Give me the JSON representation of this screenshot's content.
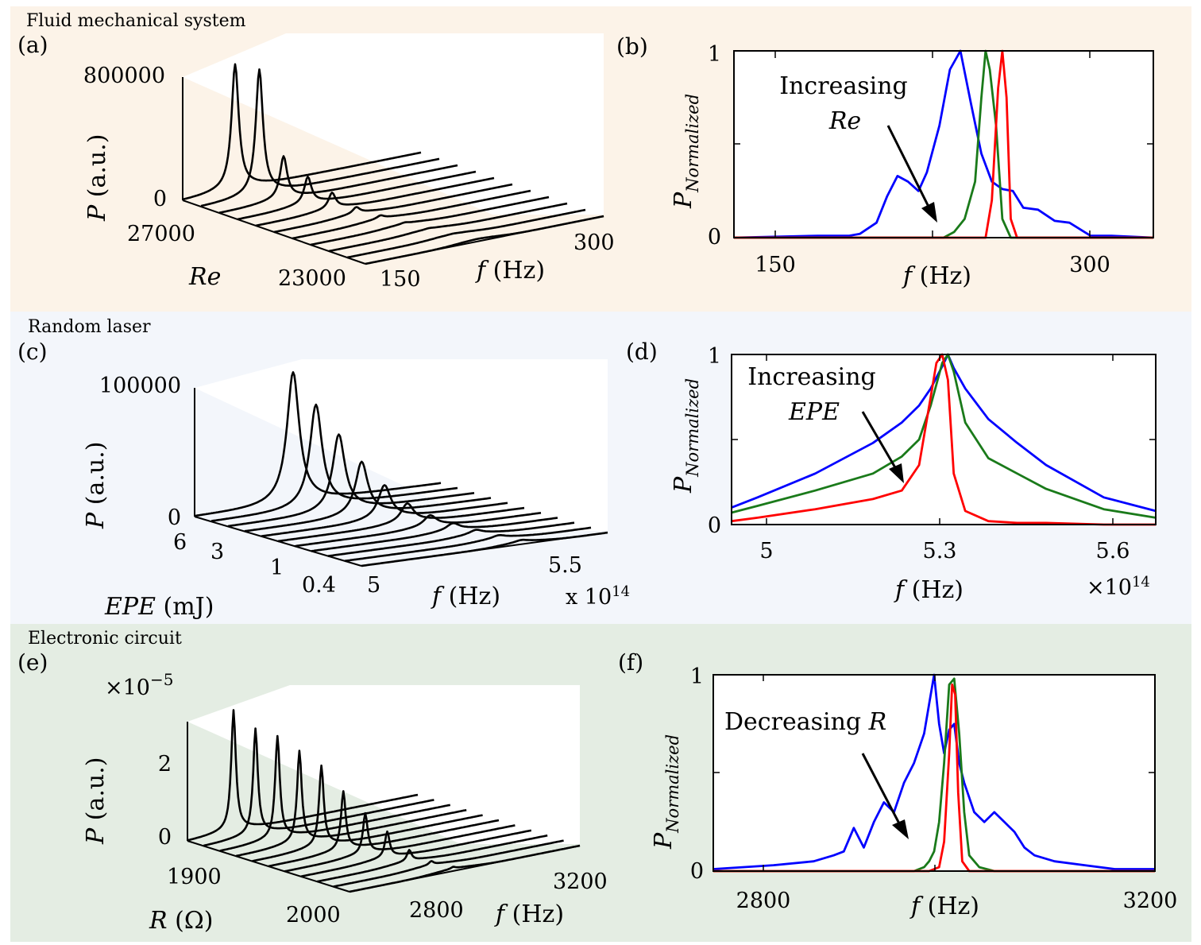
{
  "colors": {
    "fluid_bg": "#fcf3e8",
    "laser_bg": "#f3f6fb",
    "circuit_bg": "#e4ede3",
    "blue": "#0000ff",
    "green": "#1a7a1a",
    "red": "#ff0000",
    "black": "#000000"
  },
  "sections": {
    "fluid": "Fluid mechanical system",
    "laser": "Random laser",
    "circuit": "Electronic circuit"
  },
  "chart_data": [
    {
      "id": "a",
      "panel_label": "(a)",
      "type": "waterfall",
      "zlabel_var": "P",
      "zlabel_unit": "(a.u.)",
      "ylabel": "Re",
      "xlabel_var": "f",
      "xlabel_unit": "(Hz)",
      "z_ticks": [
        "0",
        "800000"
      ],
      "y_ticks": [
        "27000",
        "23000"
      ],
      "x_ticks": [
        "150",
        "300"
      ],
      "peak_heights": [
        800000,
        800000,
        270000,
        170000,
        100000,
        40000,
        20000,
        8000,
        4000,
        2000,
        1000
      ],
      "series_count": 11
    },
    {
      "id": "b",
      "panel_label": "(b)",
      "type": "line",
      "ylabel": "P",
      "ylabel_sub": "Normalized",
      "xlabel_var": "f",
      "xlabel_unit": "(Hz)",
      "x_ticks": [
        "150",
        "300"
      ],
      "y_ticks": [
        "0",
        "1"
      ],
      "xlim": [
        130,
        330
      ],
      "ylim": [
        0,
        1
      ],
      "annotation": [
        "Increasing",
        "Re"
      ],
      "series": [
        {
          "color": "blue",
          "x": [
            130,
            170,
            185,
            190,
            198,
            203,
            208,
            213,
            218,
            222,
            228,
            233,
            238,
            243,
            248,
            253,
            258,
            263,
            268,
            275,
            283,
            290,
            300,
            310,
            330
          ],
          "y": [
            0,
            0.01,
            0.01,
            0.02,
            0.08,
            0.22,
            0.33,
            0.3,
            0.25,
            0.35,
            0.6,
            0.9,
            1.0,
            0.72,
            0.45,
            0.3,
            0.26,
            0.25,
            0.16,
            0.15,
            0.09,
            0.08,
            0.01,
            0.01,
            0
          ]
        },
        {
          "color": "green",
          "x": [
            130,
            230,
            235,
            240,
            245,
            248,
            250,
            252,
            255,
            258,
            262,
            330
          ],
          "y": [
            0,
            0,
            0.03,
            0.1,
            0.3,
            0.75,
            1.0,
            0.9,
            0.6,
            0.1,
            0,
            0
          ]
        },
        {
          "color": "red",
          "x": [
            130,
            250,
            253,
            256,
            258,
            260,
            262,
            265,
            330
          ],
          "y": [
            0,
            0,
            0.2,
            0.8,
            1.0,
            0.75,
            0.1,
            0,
            0
          ]
        }
      ]
    },
    {
      "id": "c",
      "panel_label": "(c)",
      "type": "waterfall",
      "zlabel_var": "P",
      "zlabel_unit": "(a.u.)",
      "ylabel_var": "EPE",
      "ylabel_unit": "(mJ)",
      "xlabel_var": "f",
      "xlabel_unit": "(Hz)",
      "z_ticks": [
        "0",
        "100000"
      ],
      "y_ticks": [
        "6",
        "3",
        "1",
        "0.4"
      ],
      "x_ticks": [
        "5",
        "5.5"
      ],
      "x_exponent": "x 10",
      "x_exponent_power": "14",
      "peak_heights": [
        100000,
        78000,
        58000,
        40000,
        25000,
        14000,
        8000,
        5000,
        3000,
        2000,
        1500
      ],
      "series_count": 11
    },
    {
      "id": "d",
      "panel_label": "(d)",
      "type": "line",
      "ylabel": "P",
      "ylabel_sub": "Normalized",
      "xlabel_var": "f",
      "xlabel_unit": "(Hz)",
      "x_ticks": [
        "5",
        "5.3",
        "5.6"
      ],
      "y_ticks": [
        "0",
        "1"
      ],
      "x_exponent": "×10",
      "x_exponent_power": "14",
      "xlim": [
        4.955,
        5.69
      ],
      "ylim": [
        0,
        1
      ],
      "annotation": [
        "Increasing",
        "EPE"
      ],
      "series": [
        {
          "color": "blue",
          "x": [
            4.955,
            5.0,
            5.1,
            5.2,
            5.25,
            5.28,
            5.3,
            5.32,
            5.33,
            5.34,
            5.36,
            5.4,
            5.45,
            5.5,
            5.6,
            5.69
          ],
          "y": [
            0.1,
            0.16,
            0.3,
            0.48,
            0.6,
            0.7,
            0.8,
            0.93,
            1.0,
            0.92,
            0.8,
            0.62,
            0.48,
            0.35,
            0.16,
            0.08
          ]
        },
        {
          "color": "green",
          "x": [
            4.955,
            5.0,
            5.1,
            5.2,
            5.25,
            5.28,
            5.3,
            5.32,
            5.33,
            5.34,
            5.36,
            5.4,
            5.45,
            5.5,
            5.6,
            5.69
          ],
          "y": [
            0.07,
            0.11,
            0.2,
            0.3,
            0.4,
            0.5,
            0.7,
            0.95,
            1.0,
            0.9,
            0.6,
            0.39,
            0.3,
            0.21,
            0.09,
            0.04
          ]
        },
        {
          "color": "red",
          "x": [
            4.955,
            5.0,
            5.1,
            5.2,
            5.25,
            5.28,
            5.3,
            5.31,
            5.32,
            5.33,
            5.34,
            5.36,
            5.4,
            5.45,
            5.5,
            5.6,
            5.69
          ],
          "y": [
            0.02,
            0.04,
            0.09,
            0.15,
            0.2,
            0.35,
            0.75,
            0.95,
            1.0,
            0.85,
            0.3,
            0.08,
            0.02,
            0.01,
            0.01,
            0,
            0
          ]
        }
      ]
    },
    {
      "id": "e",
      "panel_label": "(e)",
      "type": "waterfall",
      "zlabel_var": "P",
      "zlabel_unit": "(a.u.)",
      "z_multiplier": "×10",
      "z_multiplier_power": "−5",
      "ylabel_var": "R",
      "ylabel_unit": "(Ω)",
      "xlabel_var": "f",
      "xlabel_unit": "(Hz)",
      "z_ticks": [
        "0",
        "2"
      ],
      "y_ticks": [
        "1900",
        "2000"
      ],
      "x_ticks": [
        "2800",
        "3200"
      ],
      "peak_heights": [
        3.3,
        2.9,
        2.8,
        2.5,
        2.2,
        1.6,
        1.1,
        0.7,
        0.3,
        0.1,
        0.05
      ],
      "series_count": 11
    },
    {
      "id": "f",
      "panel_label": "(f)",
      "type": "line",
      "ylabel": "P",
      "ylabel_sub": "Normalized",
      "xlabel_var": "f",
      "xlabel_unit": "(Hz)",
      "x_ticks": [
        "2800",
        "3200"
      ],
      "y_ticks": [
        "0",
        "1"
      ],
      "xlim": [
        2760,
        3200
      ],
      "ylim": [
        0,
        1
      ],
      "annotation": [
        "Decreasing",
        "R"
      ],
      "series": [
        {
          "color": "blue",
          "x": [
            2760,
            2820,
            2860,
            2880,
            2890,
            2900,
            2910,
            2920,
            2930,
            2940,
            2950,
            2960,
            2970,
            2975,
            2980,
            2985,
            2990,
            2995,
            3000,
            3005,
            3010,
            3020,
            3030,
            3040,
            3050,
            3060,
            3070,
            3080,
            3100,
            3130,
            3160,
            3200
          ],
          "y": [
            0.01,
            0.03,
            0.05,
            0.08,
            0.1,
            0.22,
            0.12,
            0.25,
            0.35,
            0.3,
            0.45,
            0.55,
            0.7,
            0.85,
            1.0,
            0.75,
            0.6,
            0.72,
            0.75,
            0.55,
            0.45,
            0.3,
            0.25,
            0.3,
            0.25,
            0.2,
            0.12,
            0.08,
            0.05,
            0.03,
            0.01,
            0.01
          ]
        },
        {
          "color": "green",
          "x": [
            2760,
            2960,
            2970,
            2975,
            2980,
            2985,
            2990,
            2995,
            3000,
            3005,
            3010,
            3015,
            3025,
            3040,
            3200
          ],
          "y": [
            0,
            0,
            0.02,
            0.05,
            0.1,
            0.25,
            0.55,
            0.95,
            0.98,
            0.7,
            0.3,
            0.08,
            0.02,
            0,
            0
          ]
        },
        {
          "color": "red",
          "x": [
            2760,
            2975,
            2985,
            2990,
            2995,
            2998,
            3001,
            3004,
            3008,
            3015,
            3200
          ],
          "y": [
            0,
            0,
            0.02,
            0.15,
            0.6,
            0.95,
            0.9,
            0.4,
            0.05,
            0,
            0
          ]
        }
      ]
    }
  ]
}
